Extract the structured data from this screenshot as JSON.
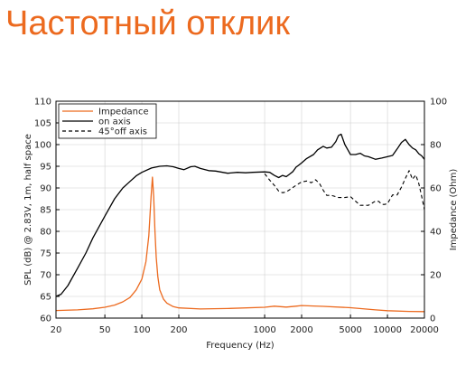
{
  "page": {
    "title": "Частотный отклик",
    "title_color": "#ec6a1f"
  },
  "chart_data": {
    "type": "line",
    "xlabel": "Frequency (Hz)",
    "ylabel_left": "SPL (dB) @ 2.83V, 1m, half space",
    "ylabel_right": "Impedance (Ohm)",
    "x_scale": "log",
    "xlim": [
      20,
      20000
    ],
    "ylim_left": [
      60,
      110
    ],
    "ylim_right": [
      0,
      100
    ],
    "x_ticks": [
      20,
      50,
      100,
      200,
      1000,
      2000,
      5000,
      10000,
      20000
    ],
    "y_ticks_left": [
      60,
      65,
      70,
      75,
      80,
      85,
      90,
      95,
      100,
      105,
      110
    ],
    "y_ticks_right": [
      0,
      20,
      40,
      60,
      80,
      100
    ],
    "grid": true,
    "legend_position": "top-left",
    "series": [
      {
        "name": "Impedance",
        "color": "#ec6a1f",
        "style": "solid",
        "axis": "right",
        "x": [
          20,
          30,
          40,
          50,
          60,
          70,
          80,
          90,
          100,
          108,
          114,
          119,
          122,
          125,
          128,
          131,
          135,
          140,
          150,
          160,
          180,
          200,
          300,
          500,
          1000,
          1200,
          1500,
          1800,
          2000,
          2500,
          3000,
          5000,
          8000,
          10000,
          15000,
          20000
        ],
        "values": [
          3.5,
          3.8,
          4.3,
          5.0,
          6.0,
          7.5,
          9.5,
          13,
          18,
          26,
          38,
          56,
          65,
          56,
          40,
          28,
          19,
          13,
          8.8,
          6.9,
          5.3,
          4.7,
          4.2,
          4.4,
          5.0,
          5.5,
          5.1,
          5.5,
          5.8,
          5.6,
          5.4,
          4.8,
          3.8,
          3.4,
          3.1,
          3.0
        ]
      },
      {
        "name": "on axis",
        "color": "#000000",
        "style": "solid",
        "axis": "left",
        "x": [
          20,
          22,
          25,
          30,
          35,
          40,
          50,
          60,
          70,
          80,
          90,
          100,
          120,
          140,
          160,
          180,
          200,
          220,
          250,
          270,
          300,
          350,
          400,
          500,
          600,
          700,
          800,
          1000,
          1100,
          1200,
          1300,
          1400,
          1500,
          1600,
          1700,
          1800,
          1900,
          2000,
          2200,
          2500,
          2700,
          3000,
          3200,
          3500,
          3800,
          4000,
          4200,
          4500,
          4800,
          5000,
          5500,
          6000,
          6500,
          7000,
          8000,
          9000,
          10000,
          11000,
          12000,
          13000,
          14000,
          15000,
          16000,
          17000,
          18000,
          19000,
          20000
        ],
        "values": [
          65,
          65.5,
          67.5,
          71.5,
          75,
          78.5,
          83.5,
          87.5,
          90,
          91.5,
          92.8,
          93.6,
          94.6,
          95.0,
          95.1,
          94.9,
          94.5,
          94.2,
          94.9,
          95.0,
          94.5,
          94.0,
          93.9,
          93.4,
          93.6,
          93.5,
          93.6,
          93.7,
          93.6,
          92.9,
          92.4,
          92.9,
          92.6,
          93.2,
          93.8,
          94.8,
          95.3,
          95.8,
          96.8,
          97.7,
          98.8,
          99.6,
          99.2,
          99.4,
          100.7,
          102.1,
          102.4,
          100.0,
          98.6,
          97.7,
          97.7,
          98.0,
          97.4,
          97.2,
          96.6,
          96.9,
          97.2,
          97.5,
          99.0,
          100.5,
          101.2,
          100.0,
          99.2,
          98.8,
          97.9,
          97.4,
          96.6
        ]
      },
      {
        "name": "45°off axis",
        "color": "#000000",
        "style": "dashed",
        "axis": "left",
        "x": [
          1000,
          1100,
          1200,
          1300,
          1400,
          1500,
          1600,
          1800,
          2000,
          2200,
          2400,
          2600,
          2800,
          3000,
          3200,
          3500,
          4000,
          4500,
          5000,
          6000,
          7000,
          8000,
          8500,
          9000,
          9500,
          10000,
          11000,
          12000,
          13000,
          14000,
          15000,
          16000,
          17000,
          18000,
          19000,
          20000
        ],
        "values": [
          93.3,
          91.8,
          90.6,
          89.3,
          88.9,
          89.1,
          89.6,
          90.6,
          91.4,
          91.6,
          91.2,
          91.9,
          91.0,
          89.5,
          88.3,
          88.3,
          87.8,
          87.8,
          88.0,
          86.0,
          86.0,
          87.0,
          86.9,
          86.2,
          86.2,
          86.4,
          88.4,
          88.4,
          90.2,
          92.2,
          94.0,
          92.0,
          93.0,
          91.0,
          88.0,
          85.0
        ]
      }
    ]
  }
}
